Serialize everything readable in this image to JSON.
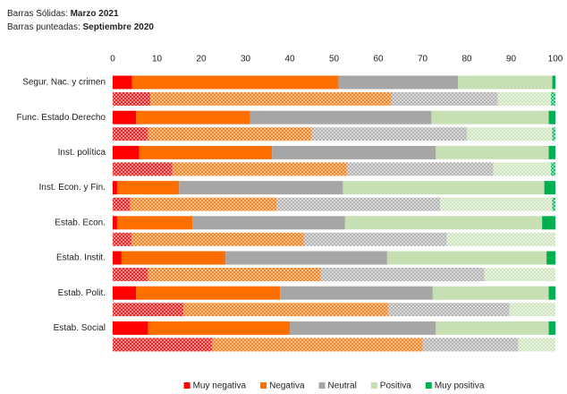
{
  "chart_data": {
    "type": "stacked_barh_pair",
    "solid_label": "Barras Sólidas:",
    "solid_period": "Marzo 2021",
    "dotted_label": "Barras punteadas:",
    "dotted_period": "Septiembre 2020",
    "categories": [
      "Segur. Nac. y crimen",
      "Func. Estado Derecho",
      "Inst. política",
      "Inst. Econ. y Fin.",
      "Estab. Econ.",
      "Estab. Instit.",
      "Estab. Polit.",
      "Estab. Social"
    ],
    "xlim": [
      0,
      100
    ],
    "xticks": [
      0,
      10,
      20,
      30,
      40,
      50,
      60,
      70,
      80,
      90,
      100
    ],
    "legend": "bottom",
    "series": [
      {
        "name": "Muy negativa",
        "color": "#ff0000",
        "values": [
          4.4,
          5.3,
          6,
          1,
          1,
          2,
          5.3,
          8
        ],
        "dotted_values": [
          8.5,
          8,
          13.5,
          4,
          4.3,
          8,
          16,
          22.5
        ]
      },
      {
        "name": "Negativa",
        "color": "#ff6f00",
        "values": [
          46.6,
          25.7,
          30,
          14,
          17,
          23.5,
          32.5,
          32
        ],
        "dotted_values": [
          54.5,
          37,
          39.5,
          33,
          39,
          39,
          46.3,
          47.5
        ]
      },
      {
        "name": "Neutral",
        "color": "#a6a6a6",
        "values": [
          27,
          41,
          37,
          37,
          34.5,
          36.5,
          34.5,
          33
        ],
        "dotted_values": [
          24,
          35,
          33,
          37,
          32.2,
          37,
          27.3,
          21.6
        ]
      },
      {
        "name": "Positiva",
        "color": "#c6e0b4",
        "values": [
          21.3,
          26.5,
          25.5,
          45.5,
          44.5,
          36,
          26.2,
          25.5
        ],
        "dotted_values": [
          12,
          19.3,
          13,
          25.3,
          24.5,
          16,
          10.4,
          8.4
        ]
      },
      {
        "name": "Muy positiva",
        "color": "#00b050",
        "values": [
          0.7,
          1.5,
          1.5,
          2.5,
          3,
          2,
          1.5,
          1.5
        ],
        "dotted_values": [
          1,
          0.7,
          1,
          0.7,
          0,
          0,
          0,
          0
        ]
      }
    ]
  }
}
